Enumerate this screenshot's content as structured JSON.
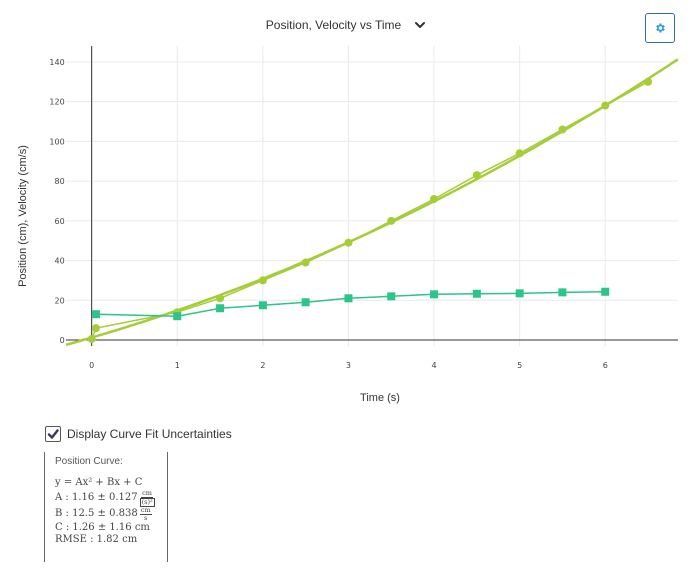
{
  "header": {
    "title": "Position, Velocity vs Time",
    "title_icon": "chevron-down-icon",
    "settings_icon": "gear-icon",
    "accent": "#2e6db4"
  },
  "chart_data": {
    "type": "scatter",
    "title": "",
    "xlabel": "Time (s)",
    "ylabel": "Position (cm), Velocity (cm/s)",
    "xlim": [
      -0.3,
      6.85
    ],
    "ylim": [
      -3,
      148
    ],
    "xticks": [
      0,
      1,
      2,
      3,
      4,
      5,
      6
    ],
    "yticks": [
      0,
      20,
      40,
      60,
      80,
      100,
      120,
      140
    ],
    "grid": true,
    "legend": "none",
    "series": [
      {
        "marker": "circle",
        "color": "#a5cd36",
        "line": "connected",
        "points": [
          [
            0,
            0.5
          ],
          [
            0.05,
            6
          ],
          [
            1,
            14
          ],
          [
            1.5,
            21
          ],
          [
            2,
            30
          ],
          [
            2.5,
            39
          ],
          [
            3,
            49
          ],
          [
            3.5,
            60
          ],
          [
            4,
            71
          ],
          [
            4.5,
            83
          ],
          [
            5,
            94
          ],
          [
            5.5,
            106
          ],
          [
            6,
            118
          ],
          [
            6.5,
            130
          ]
        ]
      },
      {
        "marker": "square",
        "color": "#2bc48a",
        "line": "connected",
        "points": [
          [
            0.05,
            13
          ],
          [
            1,
            12
          ],
          [
            1.5,
            16
          ],
          [
            2,
            17.5
          ],
          [
            2.5,
            19
          ],
          [
            3,
            21
          ],
          [
            3.5,
            22
          ],
          [
            4,
            23
          ],
          [
            4.5,
            23.3
          ],
          [
            5,
            23.5
          ],
          [
            5.5,
            24
          ],
          [
            6,
            24.3
          ]
        ]
      },
      {
        "kind": "fit",
        "color": "#a5cd36",
        "equation": {
          "A": 1.16,
          "B": 12.5,
          "C": 1.26
        }
      }
    ]
  },
  "controls": {
    "uncertainty_label": "Display Curve Fit Uncertainties",
    "uncertainty_checked": true,
    "check_icon": "checkmark-icon"
  },
  "fit_panel": {
    "heading": "Position Curve:",
    "equation": "y = Ax² + Bx + C",
    "a_text": "A : 1.16 ± 0.127",
    "a_unit_num": "cm",
    "a_unit_den": "(s)²",
    "b_text": "B : 12.5 ± 0.838",
    "b_unit_num": "cm",
    "b_unit_den": "s",
    "c_text": "C : 1.26 ± 1.16 cm",
    "rmse_text": "RMSE : 1.82 cm"
  }
}
